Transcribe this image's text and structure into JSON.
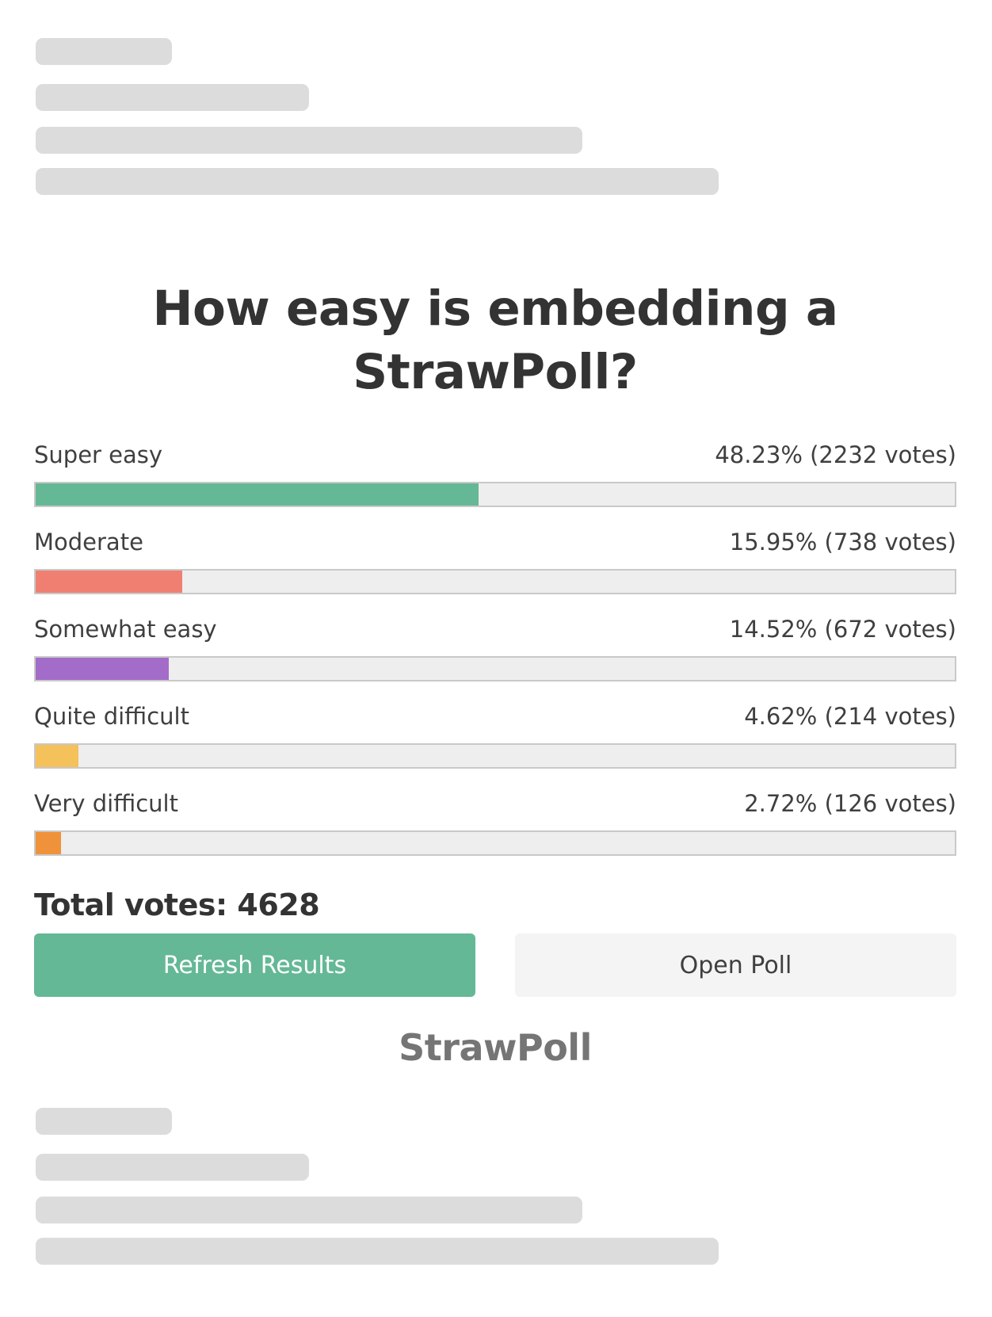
{
  "poll": {
    "question": "How easy is embedding a StrawPoll?",
    "options": [
      {
        "label": "Super easy",
        "result": "48.23% (2232 votes)",
        "percent": 48.23,
        "votes": 2232,
        "color": "#64b896"
      },
      {
        "label": "Moderate",
        "result": "15.95% (738 votes)",
        "percent": 15.95,
        "votes": 738,
        "color": "#f07f72"
      },
      {
        "label": "Somewhat easy",
        "result": "14.52% (672 votes)",
        "percent": 14.52,
        "votes": 672,
        "color": "#a36cc8"
      },
      {
        "label": "Quite difficult",
        "result": "4.62% (214 votes)",
        "percent": 4.62,
        "votes": 214,
        "color": "#f5c15a"
      },
      {
        "label": "Very difficult",
        "result": "2.72% (126 votes)",
        "percent": 2.72,
        "votes": 126,
        "color": "#f0923a"
      }
    ],
    "total_label": "Total votes: 4628",
    "total_votes": 4628,
    "refresh_label": "Refresh Results",
    "open_label": "Open Poll",
    "brand": "StrawPoll"
  },
  "colors": {
    "accent": "#64b896",
    "skeleton": "#dcdcdc",
    "bar_track": "#eeeeee"
  }
}
